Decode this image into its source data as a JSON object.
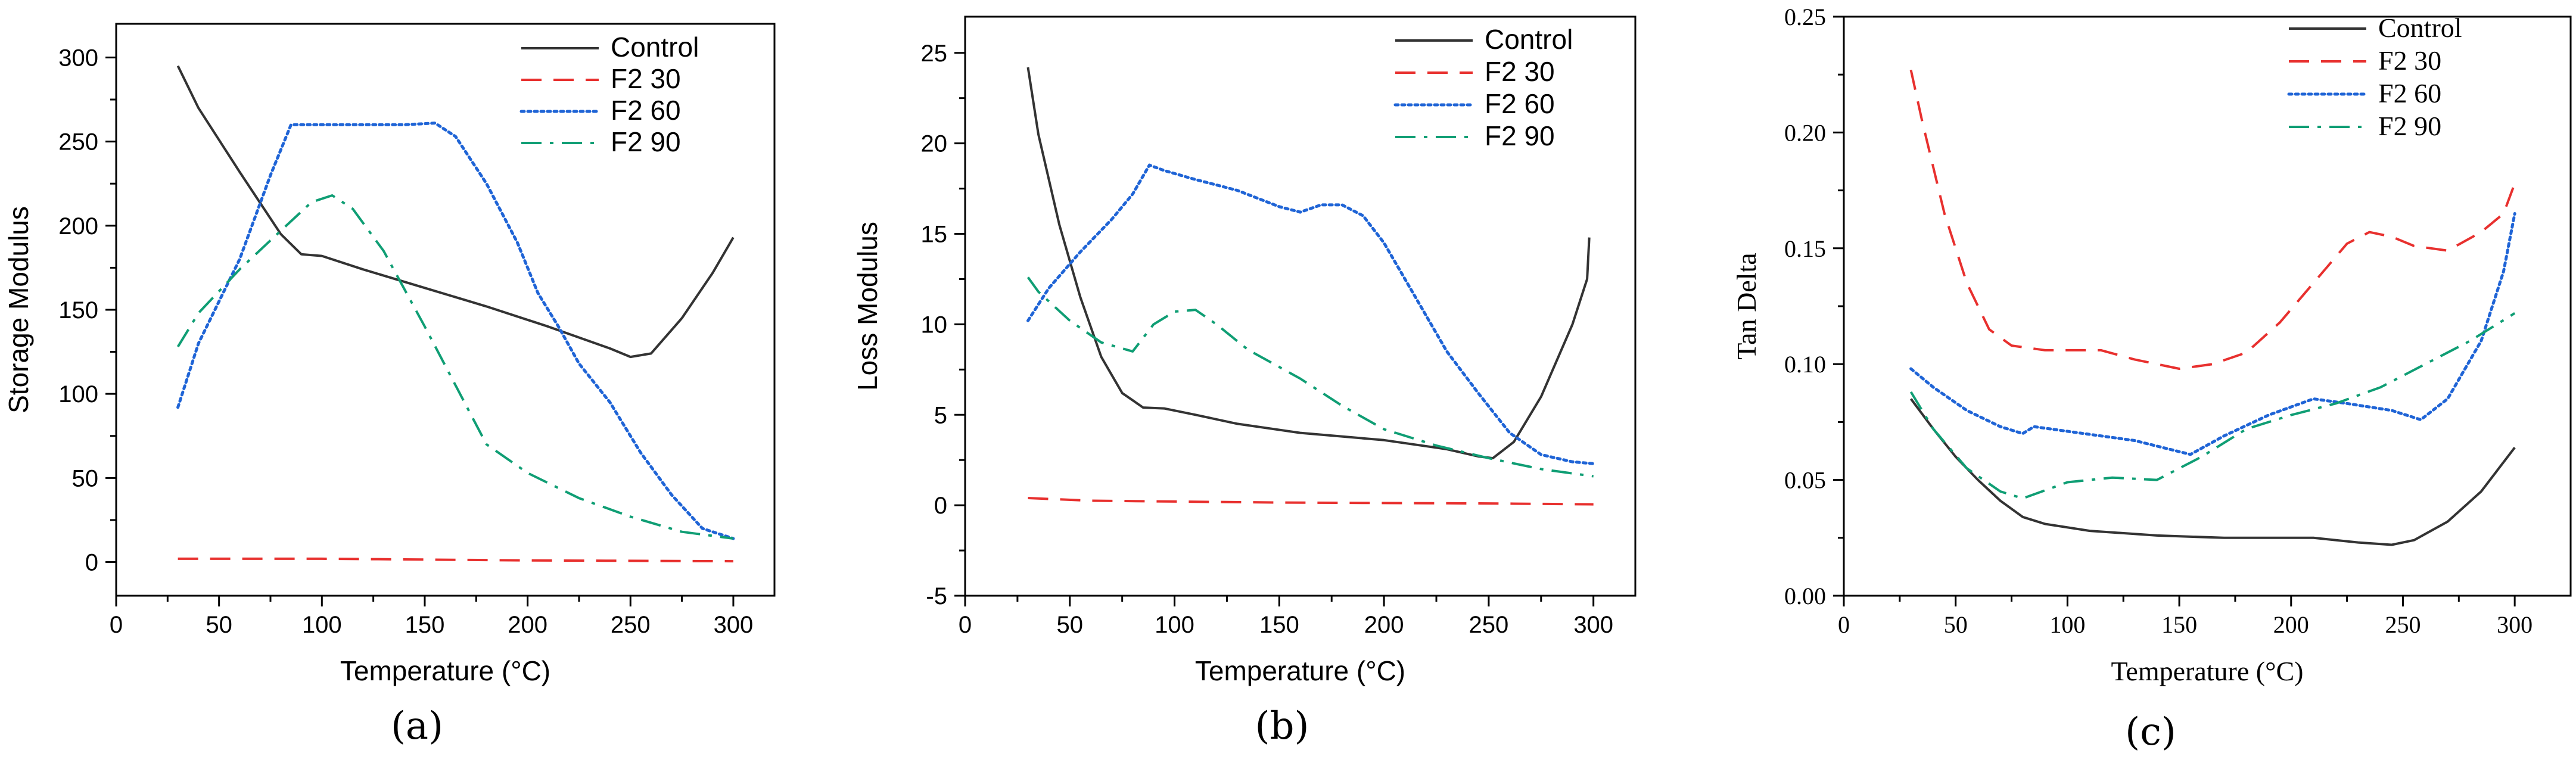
{
  "colors": {
    "control": "#333333",
    "f2_30": "#e8302e",
    "f2_60": "#1f64d6",
    "f2_90": "#0f9e74",
    "axis": "#000000"
  },
  "chart_data": [
    {
      "type": "line",
      "caption": "(a)",
      "caption_letter": "a",
      "xlabel": "Temperature (°C)",
      "ylabel": "Storage Modulus",
      "xlim": [
        0,
        320
      ],
      "ylim": [
        -20,
        320
      ],
      "xticks": [
        0,
        50,
        100,
        150,
        200,
        250,
        300
      ],
      "yticks": [
        0,
        50,
        100,
        150,
        200,
        250,
        300
      ],
      "legend_position": "top-right",
      "series": [
        {
          "name": "Control",
          "dash": "solid",
          "points": [
            [
              30,
              295
            ],
            [
              40,
              270
            ],
            [
              60,
              232
            ],
            [
              80,
              195
            ],
            [
              90,
              183
            ],
            [
              100,
              182
            ],
            [
              120,
              174
            ],
            [
              150,
              163
            ],
            [
              180,
              152
            ],
            [
              210,
              140
            ],
            [
              240,
              127
            ],
            [
              250,
              122
            ],
            [
              260,
              124
            ],
            [
              275,
              145
            ],
            [
              290,
              172
            ],
            [
              300,
              193
            ]
          ]
        },
        {
          "name": "F2 30",
          "dash": "dashed",
          "points": [
            [
              30,
              2
            ],
            [
              100,
              2
            ],
            [
              200,
              1
            ],
            [
              300,
              0.5
            ]
          ]
        },
        {
          "name": "F2 60",
          "dash": "dotted",
          "points": [
            [
              30,
              92
            ],
            [
              40,
              130
            ],
            [
              60,
              180
            ],
            [
              75,
              230
            ],
            [
              85,
              260
            ],
            [
              95,
              260
            ],
            [
              120,
              260
            ],
            [
              140,
              260
            ],
            [
              155,
              261
            ],
            [
              165,
              253
            ],
            [
              180,
              225
            ],
            [
              195,
              190
            ],
            [
              205,
              160
            ],
            [
              215,
              140
            ],
            [
              225,
              118
            ],
            [
              240,
              95
            ],
            [
              255,
              65
            ],
            [
              270,
              40
            ],
            [
              285,
              20
            ],
            [
              300,
              14
            ]
          ]
        },
        {
          "name": "F2 90",
          "dash": "dashdot",
          "points": [
            [
              30,
              128
            ],
            [
              40,
              148
            ],
            [
              60,
              174
            ],
            [
              80,
              197
            ],
            [
              95,
              214
            ],
            [
              105,
              218
            ],
            [
              115,
              210
            ],
            [
              130,
              185
            ],
            [
              150,
              140
            ],
            [
              165,
              105
            ],
            [
              180,
              70
            ],
            [
              200,
              53
            ],
            [
              225,
              38
            ],
            [
              250,
              27
            ],
            [
              275,
              18
            ],
            [
              300,
              14
            ]
          ]
        }
      ]
    },
    {
      "type": "line",
      "caption": "(b)",
      "caption_letter": "b",
      "xlabel": "Temperature (°C)",
      "ylabel": "Loss Modulus",
      "xlim": [
        0,
        320
      ],
      "ylim": [
        -5,
        27
      ],
      "xticks": [
        0,
        50,
        100,
        150,
        200,
        250,
        300
      ],
      "yticks": [
        -5,
        0,
        5,
        10,
        15,
        20,
        25
      ],
      "legend_position": "top-right",
      "series": [
        {
          "name": "Control",
          "dash": "solid",
          "points": [
            [
              30,
              24.2
            ],
            [
              35,
              20.5
            ],
            [
              45,
              15.5
            ],
            [
              55,
              11.5
            ],
            [
              65,
              8.2
            ],
            [
              75,
              6.2
            ],
            [
              85,
              5.4
            ],
            [
              95,
              5.35
            ],
            [
              110,
              5
            ],
            [
              130,
              4.5
            ],
            [
              160,
              4
            ],
            [
              200,
              3.6
            ],
            [
              230,
              3.1
            ],
            [
              245,
              2.7
            ],
            [
              252,
              2.6
            ],
            [
              262,
              3.5
            ],
            [
              275,
              6
            ],
            [
              290,
              10
            ],
            [
              297,
              12.5
            ],
            [
              298,
              14.8
            ]
          ]
        },
        {
          "name": "F2 30",
          "dash": "dashed",
          "points": [
            [
              30,
              0.4
            ],
            [
              60,
              0.25
            ],
            [
              150,
              0.15
            ],
            [
              250,
              0.1
            ],
            [
              300,
              0.05
            ]
          ]
        },
        {
          "name": "F2 60",
          "dash": "dotted",
          "points": [
            [
              30,
              10.2
            ],
            [
              40,
              12
            ],
            [
              55,
              14
            ],
            [
              70,
              15.8
            ],
            [
              80,
              17.2
            ],
            [
              88,
              18.8
            ],
            [
              95,
              18.5
            ],
            [
              110,
              18
            ],
            [
              130,
              17.4
            ],
            [
              150,
              16.5
            ],
            [
              160,
              16.2
            ],
            [
              170,
              16.6
            ],
            [
              180,
              16.6
            ],
            [
              190,
              16
            ],
            [
              200,
              14.5
            ],
            [
              215,
              11.5
            ],
            [
              230,
              8.5
            ],
            [
              245,
              6.2
            ],
            [
              260,
              4
            ],
            [
              275,
              2.8
            ],
            [
              290,
              2.4
            ],
            [
              300,
              2.3
            ]
          ]
        },
        {
          "name": "F2 90",
          "dash": "dashdot",
          "points": [
            [
              30,
              12.6
            ],
            [
              35,
              11.8
            ],
            [
              50,
              10.2
            ],
            [
              65,
              9
            ],
            [
              80,
              8.5
            ],
            [
              90,
              10
            ],
            [
              100,
              10.7
            ],
            [
              110,
              10.8
            ],
            [
              120,
              10
            ],
            [
              135,
              8.6
            ],
            [
              160,
              7
            ],
            [
              180,
              5.5
            ],
            [
              200,
              4.2
            ],
            [
              225,
              3.3
            ],
            [
              250,
              2.6
            ],
            [
              275,
              2
            ],
            [
              300,
              1.6
            ]
          ]
        }
      ]
    },
    {
      "type": "line",
      "caption": "(c)",
      "caption_letter": "c",
      "xlabel": "Temperature (°C)",
      "ylabel": "Tan Delta",
      "xlim": [
        0,
        325
      ],
      "ylim": [
        0,
        0.25
      ],
      "xticks": [
        0,
        50,
        100,
        150,
        200,
        250,
        300
      ],
      "yticks": [
        0.0,
        0.05,
        0.1,
        0.15,
        0.2,
        0.25
      ],
      "ytick_decimals": 2,
      "legend_position": "top-right",
      "series": [
        {
          "name": "Control",
          "dash": "solid",
          "points": [
            [
              30,
              0.085
            ],
            [
              40,
              0.072
            ],
            [
              50,
              0.06
            ],
            [
              60,
              0.05
            ],
            [
              70,
              0.041
            ],
            [
              80,
              0.034
            ],
            [
              90,
              0.031
            ],
            [
              110,
              0.028
            ],
            [
              140,
              0.026
            ],
            [
              170,
              0.025
            ],
            [
              210,
              0.025
            ],
            [
              230,
              0.023
            ],
            [
              245,
              0.022
            ],
            [
              255,
              0.024
            ],
            [
              270,
              0.032
            ],
            [
              285,
              0.045
            ],
            [
              300,
              0.064
            ]
          ]
        },
        {
          "name": "F2 30",
          "dash": "dashed",
          "points": [
            [
              30,
              0.227
            ],
            [
              35,
              0.205
            ],
            [
              45,
              0.165
            ],
            [
              55,
              0.135
            ],
            [
              65,
              0.115
            ],
            [
              75,
              0.108
            ],
            [
              90,
              0.106
            ],
            [
              115,
              0.106
            ],
            [
              130,
              0.102
            ],
            [
              150,
              0.098
            ],
            [
              165,
              0.1
            ],
            [
              180,
              0.105
            ],
            [
              195,
              0.118
            ],
            [
              210,
              0.135
            ],
            [
              225,
              0.152
            ],
            [
              235,
              0.157
            ],
            [
              245,
              0.155
            ],
            [
              255,
              0.151
            ],
            [
              270,
              0.149
            ],
            [
              285,
              0.157
            ],
            [
              295,
              0.165
            ],
            [
              300,
              0.178
            ]
          ]
        },
        {
          "name": "F2 60",
          "dash": "dotted",
          "points": [
            [
              30,
              0.098
            ],
            [
              40,
              0.09
            ],
            [
              55,
              0.08
            ],
            [
              70,
              0.073
            ],
            [
              80,
              0.07
            ],
            [
              85,
              0.073
            ],
            [
              100,
              0.071
            ],
            [
              130,
              0.067
            ],
            [
              155,
              0.061
            ],
            [
              170,
              0.069
            ],
            [
              190,
              0.078
            ],
            [
              210,
              0.085
            ],
            [
              225,
              0.083
            ],
            [
              245,
              0.08
            ],
            [
              258,
              0.076
            ],
            [
              270,
              0.085
            ],
            [
              285,
              0.11
            ],
            [
              295,
              0.14
            ],
            [
              300,
              0.165
            ]
          ]
        },
        {
          "name": "F2 90",
          "dash": "dashdot",
          "points": [
            [
              30,
              0.088
            ],
            [
              40,
              0.072
            ],
            [
              55,
              0.055
            ],
            [
              70,
              0.045
            ],
            [
              80,
              0.042
            ],
            [
              100,
              0.049
            ],
            [
              120,
              0.051
            ],
            [
              140,
              0.05
            ],
            [
              160,
              0.06
            ],
            [
              180,
              0.072
            ],
            [
              200,
              0.078
            ],
            [
              220,
              0.083
            ],
            [
              240,
              0.09
            ],
            [
              260,
              0.1
            ],
            [
              280,
              0.11
            ],
            [
              300,
              0.122
            ]
          ]
        }
      ]
    }
  ]
}
